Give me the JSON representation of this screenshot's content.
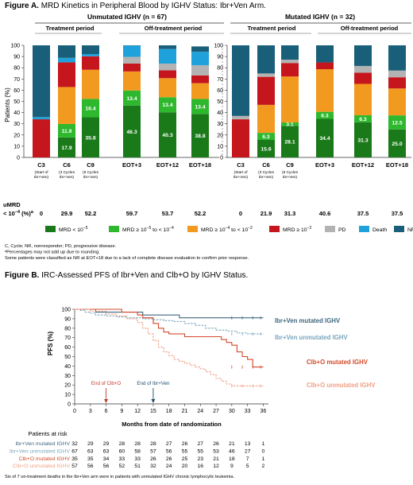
{
  "figA": {
    "heading": "Figure A.",
    "heading_rest": " MRD Kinetics in Peripheral Blood by IGHV Status: Ibr+Ven Arm.",
    "panel_left_title": "Unmutated IGHV (n = 67)",
    "panel_right_title": "Mutated IGHV (n = 32)",
    "period_treatment": "Treatment period",
    "period_off": "Off-treatment period",
    "ylabel": "Patients (%)",
    "y_ticks": [
      "0",
      "10",
      "20",
      "30",
      "40",
      "50",
      "60",
      "70",
      "80",
      "90",
      "100"
    ],
    "umrd_label_1": "uMRD",
    "umrd_label_2": "< 10",
    "umrd_label_exp": "−4",
    "umrd_label_3": " (%)",
    "umrd_label_sup": "a",
    "legend": [
      {
        "label": "MRD < 10",
        "exp": "−5",
        "rest": "",
        "color": "#1a7a1a"
      },
      {
        "label": "MRD ≥ 10",
        "exp": "−5",
        "rest": " to < 10",
        "exp2": "−4",
        "color": "#2eb82e"
      },
      {
        "label": "MRD ≥ 10",
        "exp": "−4",
        "rest": " to < 10",
        "exp2": "−2",
        "color": "#f29a1f"
      },
      {
        "label": "MRD ≥ 10",
        "exp": "−2",
        "rest": "",
        "color": "#c4161c"
      },
      {
        "label": "PD",
        "exp": "",
        "rest": "",
        "color": "#b3b3b3"
      },
      {
        "label": "Death",
        "exp": "",
        "rest": "",
        "color": "#1fa2dc"
      },
      {
        "label": "NR/Missing",
        "exp": "",
        "rest": "",
        "color": "#1a5f7a"
      }
    ],
    "footnotes": [
      "C, Cycle; NR, nonresponder; PD, progressive disease.",
      "ᵃPercentages may not add up due to rounding.",
      "Some patients were classified as NR at EOT+18 due to a lack of complete disease evaluation to confirm prior response."
    ]
  },
  "chart_data": [
    {
      "type": "bar",
      "stacked": true,
      "panel": "Unmutated IGHV (n = 67)",
      "categories": [
        "C3",
        "C6",
        "C9",
        "EOT+3",
        "EOT+12",
        "EOT+18"
      ],
      "category_notes": [
        "(Start of Ibr+Ven)",
        "(3 Cycles Ibr+Ven)",
        "(6 Cycles Ibr+Ven)",
        "",
        "",
        ""
      ],
      "series": [
        {
          "name": "MRD < 10⁻⁵",
          "values": [
            0,
            17.9,
            35.8,
            46.3,
            40.3,
            38.8
          ],
          "labels": [
            "",
            "17.9",
            "35.8",
            "46.3",
            "40.3",
            "38.8"
          ]
        },
        {
          "name": "MRD ≥ 10⁻⁵ to < 10⁻⁴",
          "values": [
            0,
            11.9,
            16.4,
            13.4,
            13.4,
            13.4
          ],
          "labels": [
            "",
            "11.9",
            "16.4",
            "13.4",
            "13.4",
            "13.4"
          ]
        },
        {
          "name": "MRD ≥ 10⁻⁴ to < 10⁻²",
          "values": [
            0,
            33,
            26,
            17,
            17,
            14
          ]
        },
        {
          "name": "MRD ≥ 10⁻²",
          "values": [
            34,
            22,
            12,
            7,
            7,
            7
          ]
        },
        {
          "name": "PD",
          "values": [
            0,
            0,
            0,
            6,
            6,
            9
          ]
        },
        {
          "name": "Death",
          "values": [
            2,
            4,
            2,
            10,
            13,
            12
          ]
        },
        {
          "name": "NR/Missing",
          "values": [
            64,
            11.2,
            7.8,
            0.3,
            3.3,
            4.8
          ]
        }
      ],
      "umrd": [
        "0",
        "29.9",
        "52.2",
        "59.7",
        "53.7",
        "52.2"
      ],
      "ylim": [
        0,
        100
      ]
    },
    {
      "type": "bar",
      "stacked": true,
      "panel": "Mutated IGHV (n = 32)",
      "categories": [
        "C3",
        "C6",
        "C9",
        "EOT+3",
        "EOT+12",
        "EOT+18"
      ],
      "category_notes": [
        "(Start of Ibr+Ven)",
        "(3 Cycles Ibr+Ven)",
        "(6 Cycles Ibr+Ven)",
        "",
        "",
        ""
      ],
      "series": [
        {
          "name": "MRD < 10⁻⁵",
          "values": [
            0,
            15.6,
            28.1,
            34.4,
            31.3,
            25.0
          ],
          "labels": [
            "",
            "15.6",
            "28.1",
            "34.4",
            "31.3",
            "25.0"
          ]
        },
        {
          "name": "MRD ≥ 10⁻⁵ to < 10⁻⁴",
          "values": [
            0,
            6.3,
            3.1,
            6.3,
            6.3,
            12.5
          ],
          "labels": [
            "",
            "6.3",
            "3.1",
            "6.3",
            "6.3",
            "12.5"
          ]
        },
        {
          "name": "MRD ≥ 10⁻⁴ to < 10⁻²",
          "values": [
            0,
            25,
            41,
            38,
            28,
            24
          ]
        },
        {
          "name": "MRD ≥ 10⁻²",
          "values": [
            34,
            25,
            12,
            6,
            10,
            10
          ]
        },
        {
          "name": "PD",
          "values": [
            3,
            3,
            3,
            0,
            6,
            6
          ]
        },
        {
          "name": "Death",
          "values": [
            0,
            0,
            0,
            0,
            0,
            0
          ]
        },
        {
          "name": "NR/Missing",
          "values": [
            63,
            25.1,
            12.8,
            15.3,
            18.4,
            22.5
          ]
        }
      ],
      "umrd": [
        "0",
        "21.9",
        "31.3",
        "40.6",
        "37.5",
        "37.5"
      ],
      "ylim": [
        0,
        100
      ]
    },
    {
      "type": "line",
      "title": "Figure B. IRC-Assessed PFS of Ibr+Ven and Clb+O by IGHV Status.",
      "xlabel": "Months from date of randomization",
      "ylabel": "PFS (%)",
      "xlim": [
        0,
        37
      ],
      "ylim": [
        0,
        100
      ],
      "x_ticks": [
        0,
        3,
        6,
        9,
        12,
        15,
        18,
        21,
        24,
        27,
        30,
        33,
        36
      ],
      "y_ticks": [
        0,
        10,
        20,
        30,
        40,
        50,
        60,
        70,
        80,
        90,
        100
      ],
      "series": [
        {
          "name": "Ibr+Ven mutated IGHV",
          "color": "#3e6780",
          "dash": false,
          "x": [
            0,
            2,
            4,
            9,
            10,
            13,
            14,
            18,
            20,
            24,
            27,
            30,
            32,
            36
          ],
          "y": [
            100,
            100,
            97,
            97,
            97,
            94,
            94,
            94,
            91,
            91,
            91,
            91,
            91,
            91
          ]
        },
        {
          "name": "Ibr+Ven unmutated IGHV",
          "color": "#7aa6bd",
          "dash": true,
          "x": [
            0,
            1,
            2,
            3,
            4,
            6,
            8,
            10,
            12,
            13,
            15,
            17,
            19,
            21,
            23,
            25,
            27,
            29,
            31,
            33,
            36
          ],
          "y": [
            100,
            99,
            97,
            96,
            94,
            93,
            92,
            91,
            91,
            90,
            89,
            88,
            87,
            85,
            83,
            80,
            78,
            77,
            75,
            74,
            74
          ]
        },
        {
          "name": "Clb+O mutated IGHV",
          "color": "#d34a2a",
          "dash": false,
          "x": [
            0,
            6,
            9,
            12,
            13,
            15,
            16,
            17,
            18,
            19,
            21,
            24,
            27,
            28,
            29,
            30,
            31,
            32,
            33,
            34,
            36
          ],
          "y": [
            100,
            100,
            97,
            94,
            91,
            85,
            80,
            76,
            74,
            74,
            71,
            71,
            71,
            68,
            65,
            62,
            55,
            50,
            47,
            39,
            39
          ]
        },
        {
          "name": "Clb+O unmutated IGHV",
          "color": "#f0a086",
          "dash": true,
          "x": [
            0,
            3,
            6,
            8,
            10,
            12,
            13,
            14,
            15,
            16,
            17,
            18,
            19,
            20,
            21,
            22,
            23,
            24,
            25,
            26,
            27,
            28,
            29,
            30,
            36
          ],
          "y": [
            100,
            98,
            95,
            93,
            90,
            86,
            80,
            74,
            67,
            60,
            55,
            51,
            47,
            45,
            43,
            41,
            39,
            37,
            34,
            31,
            27,
            24,
            21,
            19,
            19
          ]
        }
      ],
      "annotations": [
        {
          "text": "End of Clb+O",
          "x": 6,
          "color": "#c0392b"
        },
        {
          "text": "End of Ibr+Ven",
          "x": 15,
          "color": "#1f4e6b"
        }
      ]
    }
  ],
  "figB": {
    "heading": "Figure B.",
    "heading_rest": " IRC-Assessed PFS of Ibr+Ven and Clb+O by IGHV Status.",
    "curve_labels": [
      {
        "text": "Ibr+Ven mutated IGHV",
        "color": "#3e6780"
      },
      {
        "text": "Ibr+Ven unmutated IGHV",
        "color": "#7aa6bd"
      },
      {
        "text": "Clb+O mutated IGHV",
        "color": "#d34a2a"
      },
      {
        "text": "Clb+O unmutated IGHV",
        "color": "#f0a086"
      }
    ],
    "risk_title": "Patients at risk",
    "risk_rows": [
      {
        "name": "Ibr+Ven mutated IGHV",
        "color": "#3e6780",
        "values": [
          "32",
          "29",
          "29",
          "28",
          "28",
          "28",
          "27",
          "26",
          "27",
          "26",
          "21",
          "13",
          "1"
        ]
      },
      {
        "name": "Ibr+Ven unmutated IGHV",
        "color": "#7aa6bd",
        "values": [
          "67",
          "63",
          "63",
          "60",
          "58",
          "57",
          "56",
          "55",
          "55",
          "53",
          "46",
          "27",
          "0"
        ]
      },
      {
        "name": "Clb+O mutated IGHV",
        "color": "#d34a2a",
        "values": [
          "35",
          "35",
          "34",
          "33",
          "33",
          "26",
          "26",
          "25",
          "23",
          "21",
          "18",
          "7",
          "1"
        ]
      },
      {
        "name": "Clb+O unmutated IGHV",
        "color": "#f0a086",
        "values": [
          "57",
          "56",
          "56",
          "52",
          "51",
          "32",
          "24",
          "20",
          "16",
          "12",
          "9",
          "5",
          "2"
        ]
      }
    ],
    "footnote": "Six of 7 on-treatment deaths in the Ibr+Ven arm were in patients with unmutated IGHV chronic lymphocytic leukemia."
  }
}
